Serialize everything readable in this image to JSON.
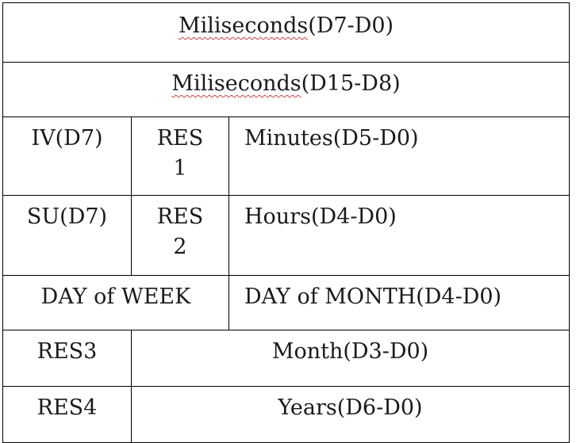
{
  "table": {
    "row1": {
      "word": "Miliseconds",
      "rest": "(D7-D0)"
    },
    "row2": {
      "word": "Miliseconds",
      "rest": "(D15-D8)"
    },
    "row3": {
      "c1": "IV(D7)",
      "c2": "RES\n1",
      "c3": "Minutes(D5-D0)"
    },
    "row4": {
      "c1": "SU(D7)",
      "c2": "RES\n2",
      "c3": "Hours(D4-D0)"
    },
    "row5": {
      "c1": "DAY of WEEK",
      "c2": "DAY of MONTH(D4-D0)"
    },
    "row6": {
      "c1": "RES3",
      "c2": "Month(D3-D0)"
    },
    "row7": {
      "c1": "RES4",
      "c2": "Years(D6-D0)"
    }
  }
}
